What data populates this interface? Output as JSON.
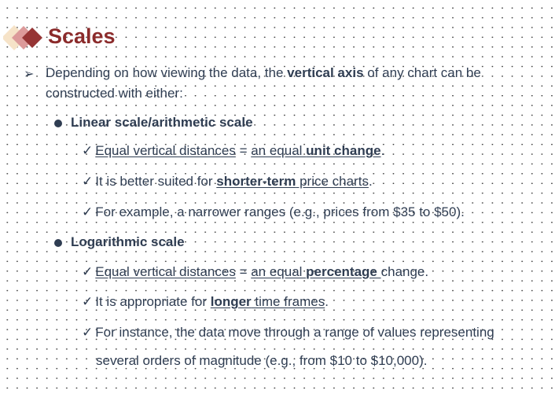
{
  "title": "Scales",
  "intro": {
    "segments": [
      {
        "text": "Depending on how viewing the data, the "
      },
      {
        "text": "vertical axis"
      },
      {
        "text": " of any chart can be"
      }
    ],
    "line2": "constructed with either:"
  },
  "check_glyph": "✓",
  "arrow_glyph": "➢",
  "linear": {
    "heading": "Linear scale/arithmetic scale",
    "items": [
      {
        "s": [
          "Equal vertical distances",
          " = ",
          "an equal ",
          "unit change",
          "."
        ]
      },
      {
        "s": [
          "It is better suited for ",
          "shorter-term",
          " price charts",
          "."
        ]
      },
      {
        "s": [
          "For example, a narrower ranges (e.g., prices from $35 to $50)."
        ]
      }
    ]
  },
  "log": {
    "heading": "Logarithmic scale",
    "items": [
      {
        "s": [
          "Equal vertical distances",
          " = ",
          "an equal ",
          "percentage ",
          "change."
        ]
      },
      {
        "s": [
          "It is appropriate for ",
          "longer",
          " time frames",
          "."
        ]
      },
      {
        "s": [
          "For instance, the data move through a range of values representing"
        ],
        "cont": "several orders of magnitude (e.g., from $10 to $10,000)."
      }
    ]
  },
  "colors": {
    "title": "#8b2b2b",
    "text": "#2f3d52",
    "logo": [
      "#f6e3c8",
      "#dc9a9a",
      "#963535"
    ]
  }
}
